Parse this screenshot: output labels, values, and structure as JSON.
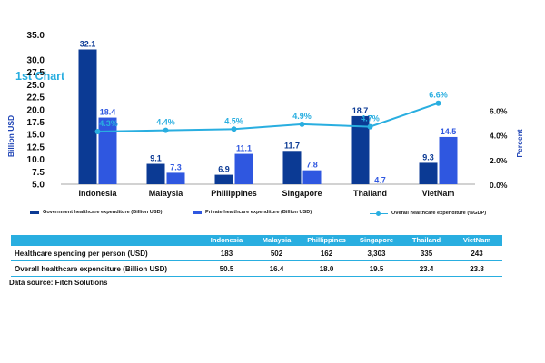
{
  "chart_title": "1st Chart",
  "chart_data": {
    "type": "bar",
    "categories": [
      "Indonesia",
      "Malaysia",
      "Phillippines",
      "Singapore",
      "Thailand",
      "VietNam"
    ],
    "series": [
      {
        "name": "Government healthcare expenditure (Billion USD)",
        "kind": "bar",
        "axis": "left",
        "values": [
          32.1,
          9.1,
          6.9,
          11.7,
          18.7,
          9.3
        ],
        "labels": [
          "32.1",
          "9.1",
          "6.9",
          "11.7",
          "18.7",
          "9.3"
        ]
      },
      {
        "name": "Private healthcare expenditure (Billion USD)",
        "kind": "bar",
        "axis": "left",
        "values": [
          18.4,
          7.3,
          11.1,
          7.8,
          4.7,
          14.5
        ],
        "labels": [
          "18.4",
          "7.3",
          "11.1",
          "7.8",
          "4.7",
          "14.5"
        ]
      },
      {
        "name": "Overall healthcare expenditure (%GDP)",
        "kind": "line",
        "axis": "right",
        "values": [
          4.3,
          4.4,
          4.5,
          4.9,
          4.7,
          6.6
        ],
        "labels": [
          "4.3%",
          "4.4%",
          "4.5%",
          "4.9%",
          "4.7%",
          "6.6%"
        ]
      }
    ],
    "y_left": {
      "label": "Billion USD",
      "min": 0,
      "max": 35,
      "ticks": [
        5,
        7.5,
        10,
        12.5,
        15,
        17.5,
        20,
        22.5,
        25,
        27.5,
        30,
        35
      ],
      "tick_labels": [
        "5.0",
        "7.5",
        "10.0",
        "12.5",
        "15.0",
        "17.5",
        "20.0",
        "22.5",
        "25.0",
        "27.5",
        "30.0",
        "35.0"
      ]
    },
    "y_right": {
      "label": "Percent",
      "min": 0,
      "max": 8,
      "ticks": [
        0,
        2,
        4,
        6
      ],
      "tick_labels": [
        "0.0%",
        "2.0%",
        "4.0%",
        "6.0%"
      ]
    },
    "colors": {
      "government": "#0b3a94",
      "private": "#2f57e0",
      "gdp_line": "#29aee0",
      "axis_label": "#1e43b5"
    },
    "grid": false,
    "legend_position": "bottom"
  },
  "table": {
    "headers": [
      "",
      "Indonesia",
      "Malaysia",
      "Phillippines",
      "Singapore",
      "Thailand",
      "VietNam"
    ],
    "rows": [
      {
        "label": "Healthcare spending per person (USD)",
        "values": [
          "183",
          "502",
          "162",
          "3,303",
          "335",
          "243"
        ]
      },
      {
        "label": "Overall healthcare expenditure (Billion USD)",
        "values": [
          "50.5",
          "16.4",
          "18.0",
          "19.5",
          "23.4",
          "23.8"
        ]
      }
    ]
  },
  "source": "Data source: Fitch Solutions"
}
